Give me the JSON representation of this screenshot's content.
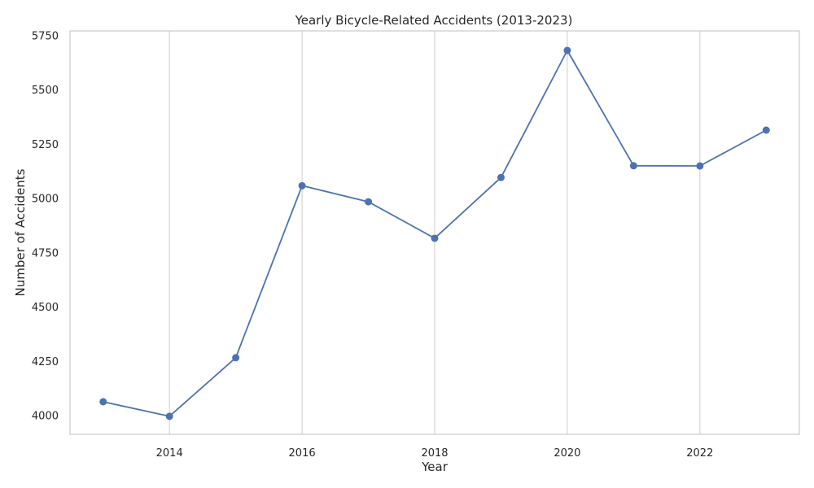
{
  "chart_data": {
    "type": "line",
    "title": "Yearly Bicycle-Related Accidents (2013-2023)",
    "xlabel": "Year",
    "ylabel": "Number of Accidents",
    "x": [
      2013,
      2014,
      2015,
      2016,
      2017,
      2018,
      2019,
      2020,
      2021,
      2022,
      2023
    ],
    "series": [
      {
        "values": [
          4062,
          3995,
          4265,
          5057,
          4983,
          4815,
          5095,
          5680,
          5149,
          5148,
          5313
        ],
        "color": "#4c72b0",
        "marker": "circle"
      }
    ],
    "xticks": [
      "2014",
      "2016",
      "2018",
      "2020",
      "2022"
    ],
    "yticks": [
      "4000",
      "4250",
      "4500",
      "4750",
      "5000",
      "5250",
      "5500",
      "5750"
    ],
    "xlim": [
      2012.5,
      2023.5
    ],
    "ylim": [
      3912,
      5770
    ],
    "grid": "x-only",
    "legend": "none"
  }
}
